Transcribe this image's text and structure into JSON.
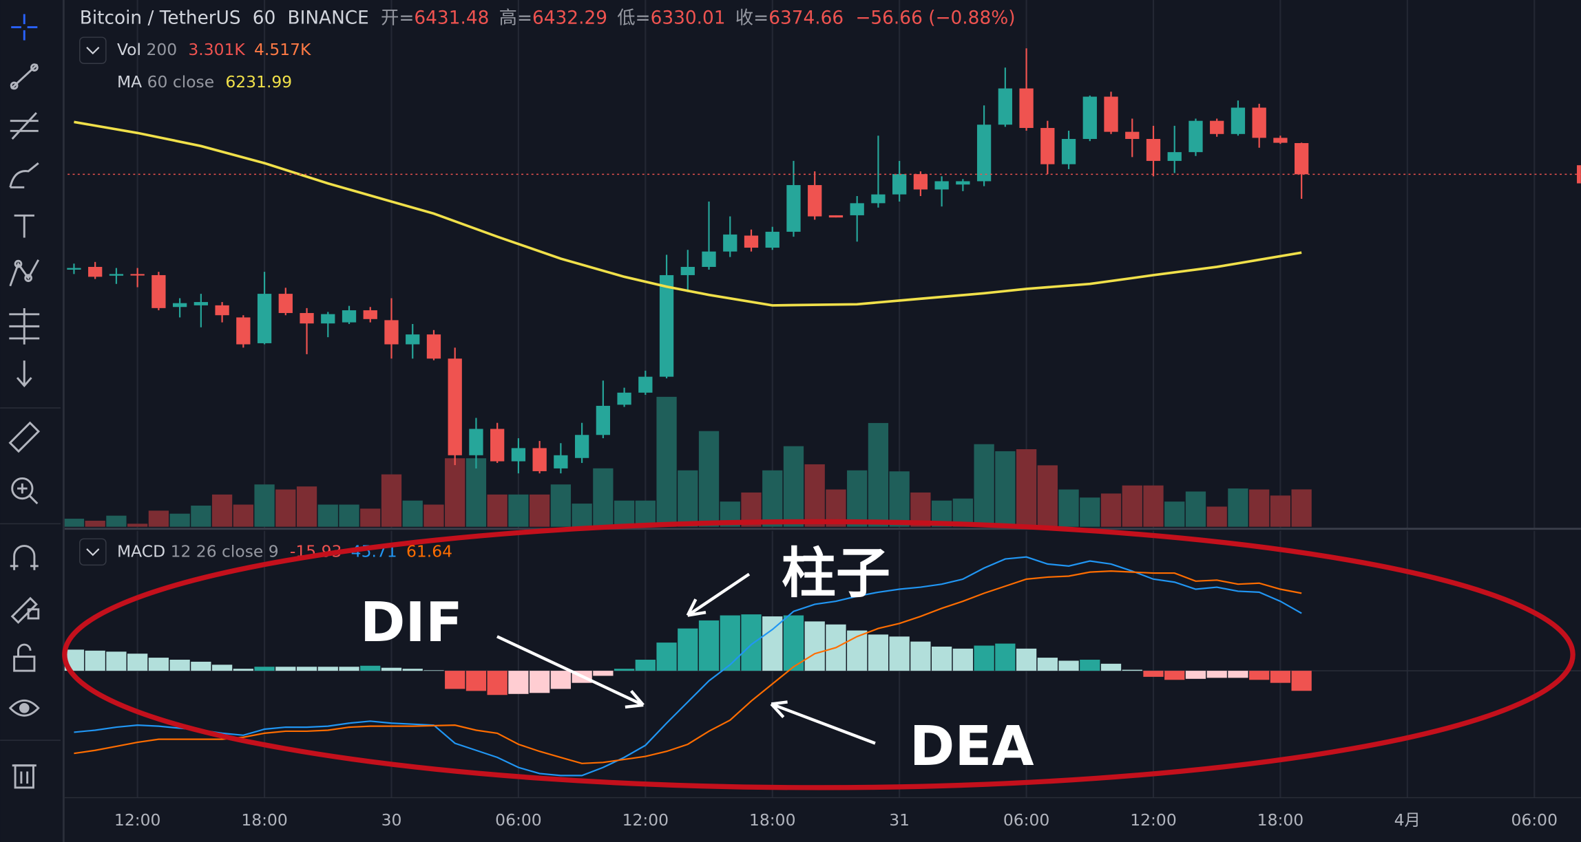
{
  "header": {
    "symbol": "Bitcoin / TetherUS",
    "interval": "60",
    "exchange": "BINANCE",
    "open_label": "开=",
    "high_label": "高=",
    "low_label": "低=",
    "close_label": "收=",
    "change": "−56.66 (−0.88%)"
  },
  "chart_data": {
    "type": "candlestick",
    "up_color": "#26a69a",
    "down_color": "#ef5350",
    "open": [
      6201,
      6206,
      6190,
      6193,
      6191,
      6133,
      6136,
      6136,
      6114,
      6067,
      6157,
      6122,
      6103,
      6105,
      6127,
      6109,
      6065,
      6083,
      6039,
      5863,
      5911,
      5852,
      5876,
      5839,
      5858,
      5900,
      5955,
      5977,
      6006,
      6191,
      6206,
      6234,
      6263,
      6241,
      6270,
      6355,
      6300,
      6300,
      6322,
      6338,
      6375,
      6347,
      6356,
      6362,
      6465,
      6531,
      6459,
      6393,
      6439,
      6516,
      6452,
      6439,
      6399,
      6415,
      6472,
      6448,
      6496,
      6441,
      6431.48
    ],
    "high": [
      6212,
      6215,
      6204,
      6204,
      6197,
      6149,
      6157,
      6142,
      6118,
      6197,
      6168,
      6131,
      6124,
      6135,
      6133,
      6149,
      6102,
      6091,
      6059,
      5931,
      5922,
      5894,
      5889,
      5885,
      5922,
      5999,
      5986,
      6017,
      6228,
      6237,
      6325,
      6298,
      6274,
      6279,
      6399,
      6380,
      6300,
      6335,
      6445,
      6399,
      6380,
      6371,
      6366,
      6500,
      6569,
      6604,
      6472,
      6454,
      6518,
      6525,
      6476,
      6463,
      6463,
      6476,
      6476,
      6509,
      6503,
      6445,
      6432.29
    ],
    "low": [
      6193,
      6184,
      6175,
      6169,
      6127,
      6114,
      6096,
      6105,
      6059,
      6065,
      6118,
      6047,
      6078,
      6102,
      6105,
      6039,
      6039,
      6036,
      5845,
      5839,
      5849,
      5830,
      5830,
      5830,
      5849,
      5894,
      5951,
      5973,
      6003,
      6160,
      6201,
      6224,
      6234,
      6237,
      6261,
      6292,
      6296,
      6252,
      6314,
      6325,
      6335,
      6316,
      6344,
      6353,
      6461,
      6454,
      6375,
      6384,
      6435,
      6448,
      6406,
      6371,
      6377,
      6408,
      6443,
      6445,
      6423,
      6430,
      6330.01
    ],
    "close": [
      6204,
      6188,
      6193,
      6191,
      6131,
      6140,
      6142,
      6118,
      6065,
      6157,
      6122,
      6103,
      6120,
      6127,
      6111,
      6065,
      6083,
      6039,
      5863,
      5911,
      5852,
      5876,
      5834,
      5863,
      5900,
      5953,
      5977,
      6006,
      6191,
      6206,
      6234,
      6265,
      6241,
      6270,
      6355,
      6298,
      6296,
      6322,
      6338,
      6375,
      6347,
      6362,
      6362,
      6465,
      6531,
      6459,
      6393,
      6439,
      6516,
      6452,
      6439,
      6399,
      6415,
      6472,
      6448,
      6496,
      6441,
      6432,
      6374.66
    ],
    "ma": {
      "name": "MA",
      "params": "60 close",
      "color": "#f0e04a",
      "x": [
        0,
        3,
        6,
        9,
        12,
        15,
        17,
        20,
        23,
        26,
        28,
        30,
        33,
        37,
        40,
        43,
        45,
        48,
        51,
        54,
        58
      ],
      "values": [
        6470,
        6450,
        6426,
        6395,
        6358,
        6325,
        6303,
        6261,
        6221,
        6188,
        6170,
        6155,
        6136,
        6138,
        6148,
        6158,
        6166,
        6175,
        6191,
        6206,
        6231.99
      ]
    },
    "volume": {
      "name": "Vol",
      "params": "200",
      "legend_value": "3.301K",
      "ma_value": "4.517K",
      "up_color": "#1f5f5a",
      "down_color": "#7d2d33",
      "values": [
        712,
        534,
        979,
        267,
        1424,
        1157,
        1869,
        2848,
        1958,
        3738,
        3293,
        3560,
        1958,
        1958,
        1602,
        4628,
        2314,
        1958,
        6052,
        6052,
        2848,
        2848,
        2848,
        3738,
        2047,
        5162,
        2314,
        2314,
        11481,
        4984,
        8455,
        2225,
        3026,
        4984,
        7120,
        5518,
        3293,
        4984,
        9167,
        4895,
        3026,
        2314,
        2492,
        7298,
        6675,
        6853,
        5429,
        3293,
        2581,
        2937,
        3649,
        3649,
        2225,
        3115,
        1780,
        3382,
        3293,
        2759,
        3301
      ]
    },
    "macd": {
      "name": "MACD",
      "params": "12 26 close 9",
      "histogram": {
        "colors": [
          "#26a69a",
          "#b2dfdb",
          "#ef5350",
          "#ffcdd2"
        ],
        "values": [
          16.8,
          16,
          15.2,
          13.6,
          10.4,
          8.8,
          7.2,
          4.8,
          1.6,
          3.2,
          3.2,
          3.2,
          3.2,
          3.2,
          4,
          2.4,
          1.6,
          0.4,
          -14.4,
          -16,
          -19.2,
          -18.4,
          -17.6,
          -14.4,
          -9.6,
          -4,
          1.6,
          8.8,
          22.4,
          33.6,
          40,
          44,
          44.8,
          43.2,
          44,
          39.2,
          36.8,
          32,
          28.8,
          27.2,
          23.2,
          19.2,
          17.6,
          20,
          21.6,
          17.6,
          10.4,
          8,
          8.8,
          5.6,
          0.8,
          -4.8,
          -7.2,
          -6.4,
          -5.6,
          -5.6,
          -7.2,
          -9.6,
          -15.93
        ]
      },
      "dif": {
        "color": "#2196f3",
        "values": [
          -48.8,
          -47.2,
          -44.8,
          -43.2,
          -44,
          -45.6,
          -47.2,
          -49.6,
          -51.2,
          -46.4,
          -44.8,
          -44.8,
          -44,
          -41.6,
          -40,
          -41.6,
          -42.4,
          -43.2,
          -57.6,
          -63.2,
          -68.8,
          -76.8,
          -81.6,
          -83.2,
          -83.2,
          -76.8,
          -68.8,
          -59.2,
          -41.6,
          -24.8,
          -8,
          4.8,
          20.8,
          32.8,
          47.2,
          52.8,
          55.2,
          59.2,
          62.4,
          64.8,
          66.4,
          68.8,
          72.8,
          81.6,
          88.8,
          90.4,
          84.8,
          83.2,
          87.2,
          84.8,
          79.2,
          72.8,
          70.4,
          64.8,
          66.4,
          63.2,
          62.4,
          55.2,
          45.71
        ]
      },
      "dea": {
        "color": "#ff6d00",
        "values": [
          -65.6,
          -63.2,
          -60,
          -56.8,
          -54.4,
          -54.4,
          -54.4,
          -54.4,
          -52.8,
          -49.6,
          -48,
          -48,
          -47.2,
          -44.8,
          -44,
          -44,
          -44,
          -43.6,
          -43.2,
          -47.2,
          -49.6,
          -58.4,
          -64,
          -68.8,
          -73.6,
          -72.8,
          -70.4,
          -68,
          -64,
          -58.4,
          -48,
          -39.2,
          -24,
          -10.4,
          3.2,
          13.6,
          18.4,
          27.2,
          33.6,
          37.6,
          43.2,
          49.6,
          55.2,
          61.6,
          67.2,
          72.8,
          74.4,
          75.2,
          78.4,
          79.2,
          78.4,
          77.6,
          77.6,
          71.2,
          72,
          68.8,
          69.6,
          64.8,
          61.64
        ]
      }
    },
    "xlim": [
      -0.3,
      71.2
    ],
    "xticks": [
      {
        "value": 3,
        "label": "12:00"
      },
      {
        "value": 9,
        "label": "18:00"
      },
      {
        "value": 15,
        "label": "30"
      },
      {
        "value": 21,
        "label": "06:00"
      },
      {
        "value": 27,
        "label": "12:00"
      },
      {
        "value": 33,
        "label": "18:00"
      },
      {
        "value": 39,
        "label": "31"
      },
      {
        "value": 45,
        "label": "06:00"
      },
      {
        "value": 51,
        "label": "12:00"
      },
      {
        "value": 57,
        "label": "18:00"
      },
      {
        "value": 63,
        "label": "4月"
      },
      {
        "value": 69,
        "label": "06:00"
      }
    ],
    "grid": true,
    "annotations": [
      "柱子",
      "DIF",
      "DEA"
    ]
  }
}
